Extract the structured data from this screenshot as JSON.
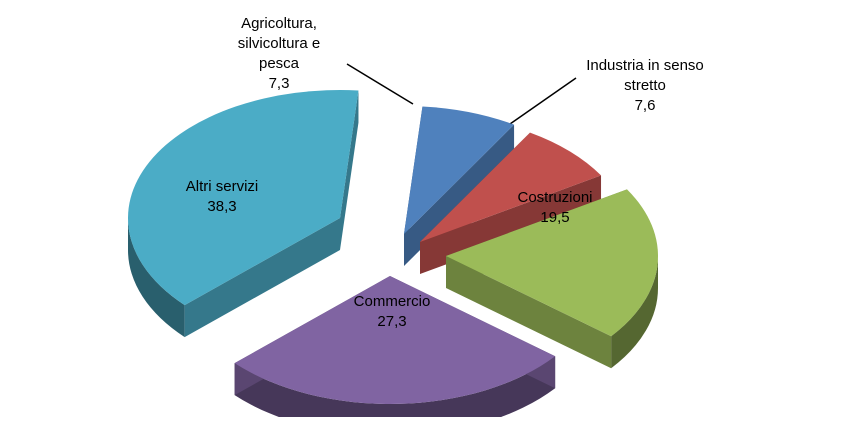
{
  "chart_data": {
    "type": "pie",
    "title": "",
    "exploded": true,
    "style": "3d",
    "slices": [
      {
        "label": "Agricoltura, silvicoltura e pesca",
        "label_lines": [
          "Agricoltura,",
          "silvicoltura e",
          "pesca"
        ],
        "value": 7.3,
        "value_text": "7,3",
        "color": "#4F81BD",
        "label_placement": "outside"
      },
      {
        "label": "Industria in senso stretto",
        "label_lines": [
          "Industria in senso",
          "stretto"
        ],
        "value": 7.6,
        "value_text": "7,6",
        "color": "#C0504D",
        "label_placement": "outside"
      },
      {
        "label": "Costruzioni",
        "label_lines": [
          "Costruzioni"
        ],
        "value": 19.5,
        "value_text": "19,5",
        "color": "#9BBB59",
        "label_placement": "inside"
      },
      {
        "label": "Commercio",
        "label_lines": [
          "Commercio"
        ],
        "value": 27.3,
        "value_text": "27,3",
        "color": "#8064A2",
        "label_placement": "inside"
      },
      {
        "label": "Altri servizi",
        "label_lines": [
          "Altri servizi"
        ],
        "value": 38.3,
        "value_text": "38,3",
        "color": "#4BACC6",
        "label_placement": "inside"
      }
    ]
  }
}
